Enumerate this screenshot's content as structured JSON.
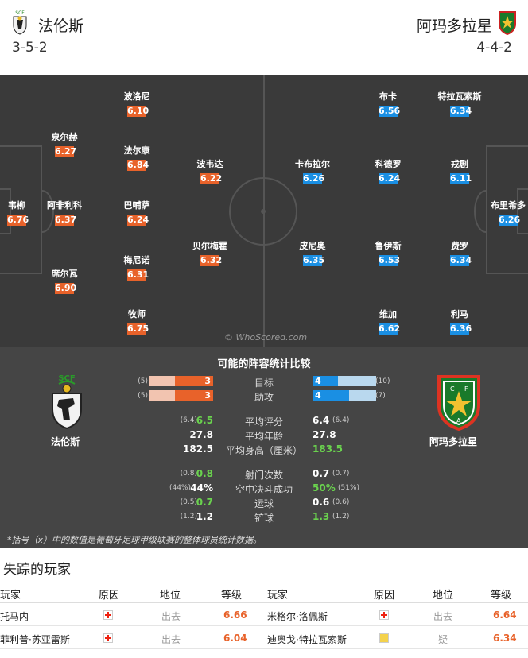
{
  "header": {
    "home_team": "法伦斯",
    "away_team": "阿玛多拉星",
    "home_formation": "3-5-2",
    "away_formation": "4-4-2"
  },
  "pitch": {
    "watermark": "© WhoScored.com",
    "home_players": [
      {
        "name": "韦柳",
        "rating": "6.76"
      },
      {
        "name": "泉尔赫",
        "rating": "6.27"
      },
      {
        "name": "阿非利科",
        "rating": "6.37"
      },
      {
        "name": "席尔瓦",
        "rating": "6.90"
      },
      {
        "name": "波洛尼",
        "rating": "6.10"
      },
      {
        "name": "法尔康",
        "rating": "6.84"
      },
      {
        "name": "巴哺萨",
        "rating": "6.24"
      },
      {
        "name": "梅尼诺",
        "rating": "6.31"
      },
      {
        "name": "牧师",
        "rating": "6.75"
      },
      {
        "name": "波韦达",
        "rating": "6.22"
      },
      {
        "name": "贝尔梅霍",
        "rating": "6.32"
      }
    ],
    "away_players": [
      {
        "name": "卡布拉尔",
        "rating": "6.26"
      },
      {
        "name": "皮尼奥",
        "rating": "6.35"
      },
      {
        "name": "布卡",
        "rating": "6.56"
      },
      {
        "name": "科德罗",
        "rating": "6.24"
      },
      {
        "name": "鲁伊斯",
        "rating": "6.53"
      },
      {
        "name": "维加",
        "rating": "6.62"
      },
      {
        "name": "特拉瓦索斯",
        "rating": "6.34"
      },
      {
        "name": "戎剧",
        "rating": "6.11"
      },
      {
        "name": "费罗",
        "rating": "6.34"
      },
      {
        "name": "利马",
        "rating": "6.36"
      },
      {
        "name": "布里希多",
        "rating": "6.26"
      }
    ]
  },
  "stats": {
    "title": "可能的阵容统计比较",
    "home_label": "法伦斯",
    "away_label": "阿玛多拉星",
    "bars": [
      {
        "label": "目标",
        "home": 3,
        "home_league": "(5)",
        "away": 4,
        "away_league": "(10)",
        "home_fill": 0.6,
        "away_fill": 0.4
      },
      {
        "label": "助攻",
        "home": 3,
        "home_league": "(5)",
        "away": 4,
        "away_league": "(7)",
        "home_fill": 0.6,
        "away_fill": 0.57
      }
    ],
    "rows": [
      {
        "label": "平均评分",
        "home": "6.5",
        "home_league": "(6.4)",
        "away": "6.4",
        "away_league": "(6.4)",
        "home_better": true,
        "away_better": false
      },
      {
        "label": "平均年龄",
        "home": "27.8",
        "home_league": "",
        "away": "27.8",
        "away_league": "",
        "home_better": false,
        "away_better": false
      },
      {
        "label": "平均身高（厘米）",
        "home": "182.5",
        "home_league": "",
        "away": "183.5",
        "away_league": "",
        "home_better": false,
        "away_better": true
      },
      {
        "label": "射门次数",
        "home": "0.8",
        "home_league": "(0.8)",
        "away": "0.7",
        "away_league": "(0.7)",
        "home_better": true,
        "away_better": false
      },
      {
        "label": "空中决斗成功",
        "home": "44%",
        "home_league": "(44%)",
        "away": "50%",
        "away_league": "(51%)",
        "home_better": false,
        "away_better": true
      },
      {
        "label": "运球",
        "home": "0.7",
        "home_league": "(0.5)",
        "away": "0.6",
        "away_league": "(0.6)",
        "home_better": true,
        "away_better": false
      },
      {
        "label": "铲球",
        "home": "1.2",
        "home_league": "(1.2)",
        "away": "1.3",
        "away_league": "(1.2)",
        "home_better": false,
        "away_better": true
      }
    ],
    "footnote": "*括号（x）中的数值是葡萄牙足球甲级联赛的整体球员统计数据。"
  },
  "missing": {
    "title": "失踪的玩家",
    "headers": {
      "player": "玩家",
      "reason": "原因",
      "status": "地位",
      "rating": "等级"
    },
    "home": [
      {
        "name": "托马内",
        "reason": "injury",
        "status": "出去",
        "rating": "6.66"
      },
      {
        "name": "菲利普·苏亚雷斯",
        "reason": "injury",
        "status": "出去",
        "rating": "6.04"
      }
    ],
    "away": [
      {
        "name": "米格尔·洛佩斯",
        "reason": "injury",
        "status": "出去",
        "rating": "6.64"
      },
      {
        "name": "迪奥戈·特拉瓦索斯",
        "reason": "doubt",
        "status": "疑",
        "rating": "6.34"
      }
    ]
  },
  "colors": {
    "home_accent": "#e8622a",
    "away_accent": "#1a8fe3",
    "better_value": "#6ad24e",
    "pitch": "#3a3a3a",
    "stats_panel": "#454545"
  }
}
